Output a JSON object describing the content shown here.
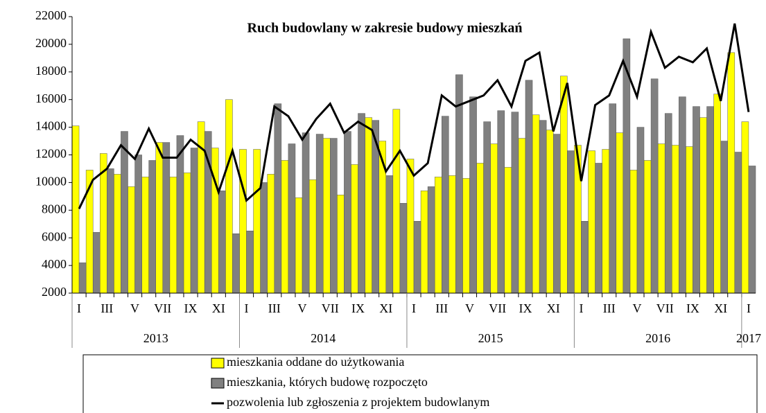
{
  "chart_data": {
    "type": "bar_line",
    "title": "Ruch budowlany w zakresie budowy mieszkań",
    "categories": [
      "I",
      null,
      "III",
      null,
      "V",
      null,
      "VII",
      null,
      "IX",
      null,
      "XI",
      null,
      "I",
      null,
      "III",
      null,
      "V",
      null,
      "VII",
      null,
      "IX",
      null,
      "XI",
      null,
      "I",
      null,
      "III",
      null,
      "V",
      null,
      "VII",
      null,
      "IX",
      null,
      "XI",
      null,
      "I",
      null,
      "III",
      null,
      "V",
      null,
      "VII",
      null,
      "IX",
      null,
      "XI",
      null,
      "I"
    ],
    "years": [
      "2013",
      "2014",
      "2015",
      "2016",
      "2017"
    ],
    "series": [
      {
        "name": "mieszkania oddane do użytkowania",
        "type": "bar",
        "color": "#ffff00",
        "values": [
          14100,
          10900,
          12100,
          10600,
          9700,
          10400,
          12900,
          10400,
          10700,
          14400,
          12500,
          16000,
          12400,
          12400,
          10600,
          11600,
          8900,
          10200,
          13200,
          9100,
          11300,
          14700,
          13000,
          15300,
          11700,
          9400,
          10400,
          10500,
          10300,
          11400,
          12800,
          11100,
          13200,
          14900,
          13800,
          17700,
          12700,
          12300,
          12400,
          13600,
          10900,
          11600,
          12800,
          12700,
          12600,
          14700,
          16400,
          19400,
          14400
        ]
      },
      {
        "name": "mieszkania, których budowę rozpoczęto",
        "type": "bar",
        "color": "#808080",
        "values": [
          4200,
          6400,
          11000,
          13700,
          12000,
          11600,
          12900,
          13400,
          12500,
          13700,
          9400,
          6300,
          6500,
          10000,
          15700,
          12800,
          13600,
          13500,
          13200,
          13700,
          15000,
          14500,
          10500,
          8500,
          7200,
          9700,
          14800,
          17800,
          16200,
          14400,
          15200,
          15100,
          17400,
          14500,
          13500,
          12300,
          7200,
          11400,
          15700,
          20400,
          14000,
          17500,
          15000,
          16200,
          15500,
          15500,
          13000,
          12200,
          11200
        ]
      },
      {
        "name": "pozwolenia lub zgłoszenia z projektem budowlanym",
        "type": "line",
        "color": "#000000",
        "values": [
          8100,
          10200,
          11000,
          12700,
          11700,
          13900,
          11800,
          11800,
          13100,
          12300,
          9300,
          12300,
          8700,
          9600,
          15500,
          14800,
          13100,
          14600,
          15700,
          13600,
          14400,
          13800,
          10800,
          12300,
          10500,
          11400,
          16300,
          15500,
          15900,
          16300,
          17400,
          15500,
          18800,
          19400,
          13700,
          17200,
          10100,
          15600,
          16300,
          18800,
          16200,
          20900,
          18300,
          19100,
          18700,
          19700,
          15900,
          21500,
          15100
        ]
      }
    ],
    "ylim": [
      2000,
      22000
    ],
    "yticks": [
      2000,
      4000,
      6000,
      8000,
      10000,
      12000,
      14000,
      16000,
      18000,
      20000,
      22000
    ]
  }
}
